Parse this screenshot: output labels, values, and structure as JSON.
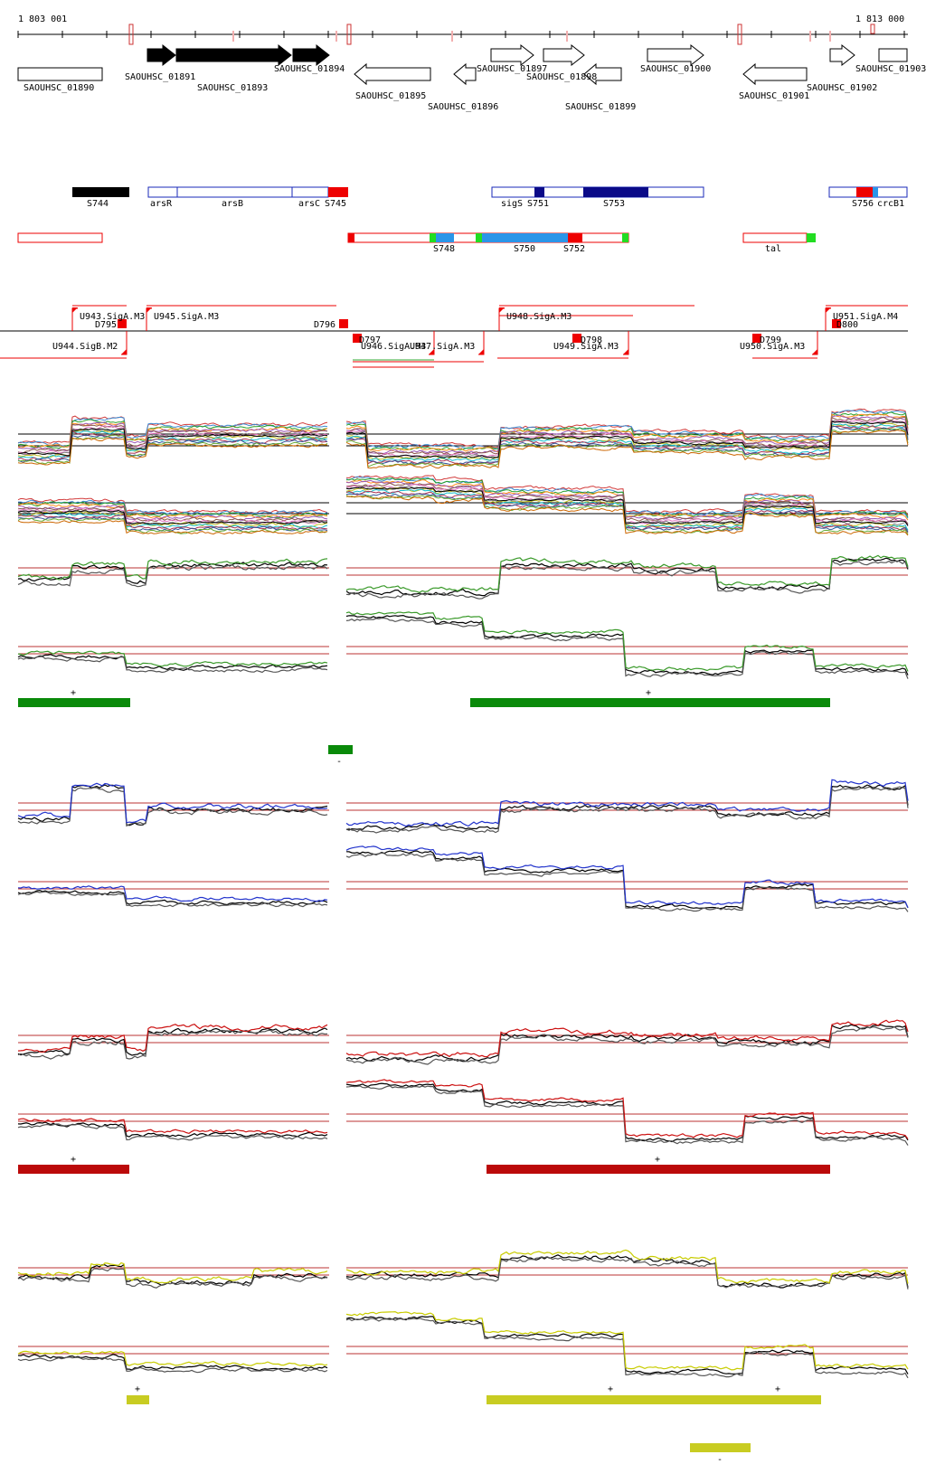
{
  "coords": {
    "start": "1 803 001",
    "end": "1 813 000"
  },
  "genes": [
    {
      "id": "g01890",
      "label": "SAOUHSC_01890",
      "strand": "+",
      "filled": false
    },
    {
      "id": "g01891",
      "label": "SAOUHSC_01891",
      "strand": "+",
      "filled": true
    },
    {
      "id": "g01893",
      "label": "SAOUHSC_01893",
      "strand": "+",
      "filled": true
    },
    {
      "id": "g01894",
      "label": "SAOUHSC_01894",
      "strand": "+",
      "filled": true
    },
    {
      "id": "g01895",
      "label": "SAOUHSC_01895",
      "strand": "-",
      "filled": false
    },
    {
      "id": "g01896",
      "label": "SAOUHSC_01896",
      "strand": "-",
      "filled": false
    },
    {
      "id": "g01897",
      "label": "SAOUHSC_01897",
      "strand": "+",
      "filled": false
    },
    {
      "id": "g01898",
      "label": "SAOUHSC_01898",
      "strand": "+",
      "filled": false
    },
    {
      "id": "g01899",
      "label": "SAOUHSC_01899",
      "strand": "-",
      "filled": false
    },
    {
      "id": "g01900",
      "label": "SAOUHSC_01900",
      "strand": "+",
      "filled": false
    },
    {
      "id": "g01901",
      "label": "SAOUHSC_01901",
      "strand": "-",
      "filled": false
    },
    {
      "id": "g01902",
      "label": "SAOUHSC_01902",
      "strand": "+",
      "filled": false
    },
    {
      "id": "g01903",
      "label": "SAOUHSC_01903",
      "strand": "+",
      "filled": false
    }
  ],
  "segments_plus_labels": [
    "S744",
    "arsR",
    "arsB",
    "arsC",
    "S745",
    "sigS",
    "S751",
    "S753",
    "S756",
    "crcB1"
  ],
  "segments_minus_labels": [
    "S748",
    "S750",
    "S752",
    "tal"
  ],
  "promoters_upstream": [
    "U943.SigA.M3",
    "U945.SigA.M3",
    "U948.SigA.M3",
    "U951.SigA.M4"
  ],
  "promoters_downstream": [
    "U944.SigB.M2",
    "U946.SigA.M3",
    "U947.SigA.M3",
    "U949.SigA.M3",
    "U950.SigA.M3"
  ],
  "terminators": [
    "D795",
    "D796",
    "D797",
    "D798",
    "D799",
    "D800"
  ],
  "panels": [
    {
      "id": "green",
      "color": "#3a9a2a",
      "bar_color": "#0a8a0a",
      "signs": [
        "+",
        "+",
        "-"
      ]
    },
    {
      "id": "blue",
      "color": "#2233cc",
      "signs": []
    },
    {
      "id": "red",
      "color": "#cc1111",
      "bar_color": "#bb0a0a",
      "signs": [
        "+",
        "+"
      ]
    },
    {
      "id": "yellow",
      "color": "#c8cc00",
      "bar_color": "#c8cc22",
      "signs": [
        "+",
        "+",
        "+",
        "-"
      ]
    }
  ],
  "colors": {
    "segment_outline": "#1a28b8",
    "dark_blue": "#0a0a88",
    "light_blue": "#2b95e8",
    "red": "#ee0000",
    "green": "#22dd22",
    "bg_line": "#bb3333"
  }
}
